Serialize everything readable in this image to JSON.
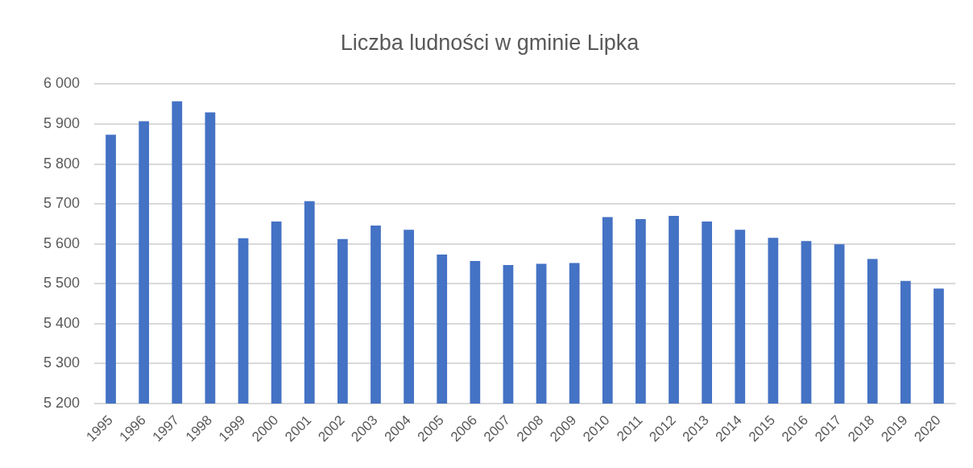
{
  "chart_data": {
    "type": "bar",
    "title": "Liczba ludności w gminie Lipka",
    "categories": [
      "1995",
      "1996",
      "1997",
      "1998",
      "1999",
      "2000",
      "2001",
      "2002",
      "2003",
      "2004",
      "2005",
      "2006",
      "2007",
      "2008",
      "2009",
      "2010",
      "2011",
      "2012",
      "2013",
      "2014",
      "2015",
      "2016",
      "2017",
      "2018",
      "2019",
      "2020"
    ],
    "values": [
      5873,
      5907,
      5957,
      5929,
      5614,
      5656,
      5707,
      5612,
      5646,
      5635,
      5573,
      5557,
      5547,
      5550,
      5552,
      5667,
      5662,
      5670,
      5656,
      5635,
      5615,
      5607,
      5599,
      5562,
      5507,
      5488
    ],
    "color": "#4472c4",
    "ylim": [
      5200,
      6000
    ],
    "yticks": [
      {
        "value": 5200,
        "label": "5 200"
      },
      {
        "value": 5300,
        "label": "5 300"
      },
      {
        "value": 5400,
        "label": "5 400"
      },
      {
        "value": 5500,
        "label": "5 500"
      },
      {
        "value": 5600,
        "label": "5 600"
      },
      {
        "value": 5700,
        "label": "5 700"
      },
      {
        "value": 5800,
        "label": "5 800"
      },
      {
        "value": 5900,
        "label": "5 900"
      },
      {
        "value": 6000,
        "label": "6 000"
      }
    ],
    "grid": "y"
  }
}
